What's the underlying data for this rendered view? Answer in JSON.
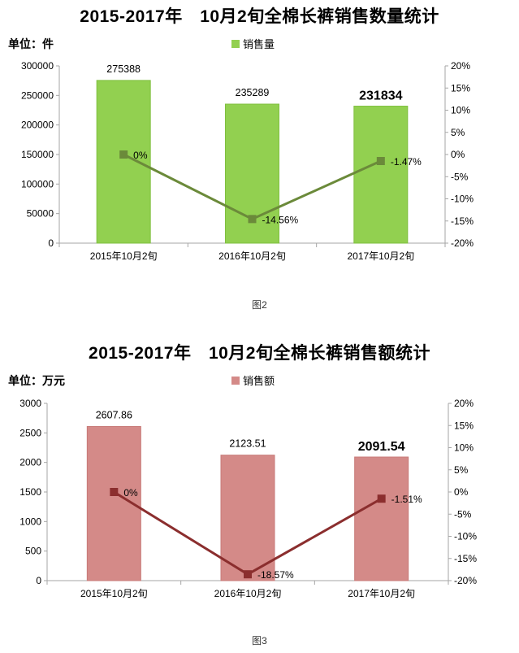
{
  "charts": [
    {
      "title": "2015-2017年　10月2旬全棉长裤销售数量统计",
      "unit": "单位：件",
      "legend": "销售量",
      "caption": "图2"
    },
    {
      "title": "2015-2017年　10月2旬全棉长裤销售额统计",
      "unit": "单位：万元",
      "legend": "销售额",
      "caption": "图3"
    }
  ],
  "chart_data": [
    {
      "type": "bar",
      "title": "2015-2017年　10月2旬全棉长裤销售数量统计",
      "categories": [
        "2015年10月2旬",
        "2016年10月2旬",
        "2017年10月2旬"
      ],
      "series": [
        {
          "name": "销售量",
          "type": "bar",
          "axis": "left",
          "values": [
            275388,
            235289,
            231834
          ],
          "labels": [
            "275388",
            "235289",
            "231834"
          ],
          "highlight_last": true
        },
        {
          "type": "line",
          "axis": "right",
          "values": [
            0,
            -14.56,
            -1.47
          ],
          "labels": [
            "0%",
            "-14.56%",
            "-1.47%"
          ]
        }
      ],
      "ylim": [
        0,
        300000
      ],
      "yticks": [
        "0",
        "50000",
        "100000",
        "150000",
        "200000",
        "250000",
        "300000"
      ],
      "y2lim": [
        -20,
        20
      ],
      "y2ticks": [
        "-20%",
        "-15%",
        "-10%",
        "-5%",
        "0%",
        "5%",
        "10%",
        "15%",
        "20%"
      ],
      "legend_position": "top-center",
      "grid": false,
      "colors": {
        "bar": "#92d050",
        "bar_edge": "#7fbf3f",
        "line": "#6b8a3a"
      }
    },
    {
      "type": "bar",
      "title": "2015-2017年　10月2旬全棉长裤销售额统计",
      "categories": [
        "2015年10月2旬",
        "2016年10月2旬",
        "2017年10月2旬"
      ],
      "series": [
        {
          "name": "销售额",
          "type": "bar",
          "axis": "left",
          "values": [
            2607.86,
            2123.51,
            2091.54
          ],
          "labels": [
            "2607.86",
            "2123.51",
            "2091.54"
          ],
          "highlight_last": true
        },
        {
          "type": "line",
          "axis": "right",
          "values": [
            0,
            -18.57,
            -1.51
          ],
          "labels": [
            "0%",
            "-18.57%",
            "-1.51%"
          ]
        }
      ],
      "ylim": [
        0,
        3000
      ],
      "yticks": [
        "0",
        "500",
        "1000",
        "1500",
        "2000",
        "2500",
        "3000"
      ],
      "y2lim": [
        -20,
        20
      ],
      "y2ticks": [
        "-20%",
        "-15%",
        "-10%",
        "-5%",
        "0%",
        "5%",
        "10%",
        "15%",
        "20%"
      ],
      "legend_position": "top-center",
      "grid": false,
      "colors": {
        "bar": "#d48a88",
        "bar_edge": "#c77a78",
        "line": "#8b2e2e"
      }
    }
  ]
}
